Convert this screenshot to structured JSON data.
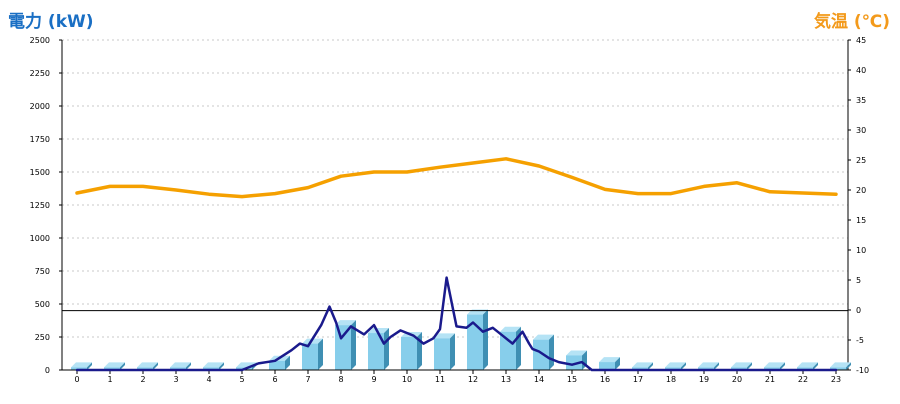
{
  "titles": {
    "left": "電力 (kW)",
    "right": "気温 (℃)"
  },
  "colors": {
    "power_line": "#1a1a8c",
    "temperature_line": "#f5a000",
    "bar_front": "#87ceeb",
    "bar_side": "#3f8fb3",
    "bar_top": "#b5e3f5",
    "left_title": "#1a6fc4",
    "right_title": "#f39a1b",
    "grid": "#c8c8c8"
  },
  "chart_data": {
    "type": "bar",
    "categories": [
      "0",
      "1",
      "2",
      "3",
      "4",
      "5",
      "6",
      "7",
      "8",
      "9",
      "10",
      "11",
      "12",
      "13",
      "14",
      "15",
      "16",
      "17",
      "18",
      "19",
      "20",
      "21",
      "22",
      "23"
    ],
    "y_left_ticks": [
      "0",
      "250",
      "500",
      "750",
      "1000",
      "1250",
      "1500",
      "1750",
      "2000",
      "2250",
      "2500"
    ],
    "y_right_ticks": [
      "-10",
      "-5",
      "0",
      "5",
      "10",
      "15",
      "20",
      "25",
      "30",
      "35",
      "40",
      "45"
    ],
    "ylim_left": [
      0,
      2500
    ],
    "ylim_right": [
      -10,
      45
    ],
    "reference_line_left": 450,
    "grid": true,
    "series": [
      {
        "type": "bar",
        "axis": "left",
        "values": [
          20,
          20,
          20,
          20,
          20,
          20,
          70,
          200,
          340,
          280,
          250,
          240,
          420,
          290,
          230,
          110,
          60,
          20,
          20,
          20,
          20,
          20,
          20,
          20
        ]
      },
      {
        "type": "line",
        "axis": "left",
        "points": [
          [
            0,
            0
          ],
          [
            1,
            0
          ],
          [
            2,
            0
          ],
          [
            3,
            0
          ],
          [
            4,
            0
          ],
          [
            5,
            0
          ],
          [
            5.5,
            50
          ],
          [
            6,
            70
          ],
          [
            6.5,
            150
          ],
          [
            6.75,
            200
          ],
          [
            7,
            180
          ],
          [
            7.4,
            340
          ],
          [
            7.65,
            480
          ],
          [
            7.85,
            360
          ],
          [
            8,
            240
          ],
          [
            8.3,
            330
          ],
          [
            8.7,
            270
          ],
          [
            9,
            340
          ],
          [
            9.3,
            200
          ],
          [
            9.5,
            250
          ],
          [
            9.8,
            300
          ],
          [
            10.2,
            260
          ],
          [
            10.5,
            200
          ],
          [
            10.8,
            240
          ],
          [
            11,
            310
          ],
          [
            11.2,
            700
          ],
          [
            11.5,
            330
          ],
          [
            11.8,
            320
          ],
          [
            12,
            360
          ],
          [
            12.3,
            290
          ],
          [
            12.6,
            320
          ],
          [
            12.9,
            260
          ],
          [
            13.2,
            200
          ],
          [
            13.5,
            290
          ],
          [
            13.7,
            200
          ],
          [
            13.8,
            160
          ],
          [
            14,
            140
          ],
          [
            14.3,
            90
          ],
          [
            14.6,
            60
          ],
          [
            15,
            40
          ],
          [
            15.3,
            60
          ],
          [
            15.6,
            0
          ],
          [
            16,
            0
          ],
          [
            17,
            0
          ],
          [
            18,
            0
          ],
          [
            19,
            0
          ],
          [
            20,
            0
          ],
          [
            21,
            0
          ],
          [
            22,
            0
          ],
          [
            23,
            0
          ]
        ]
      },
      {
        "type": "line",
        "axis": "right",
        "points": [
          [
            0,
            19.5
          ],
          [
            1,
            20.6
          ],
          [
            2,
            20.6
          ],
          [
            3,
            20
          ],
          [
            4,
            19.3
          ],
          [
            5,
            18.9
          ],
          [
            6,
            19.4
          ],
          [
            7,
            20.4
          ],
          [
            8,
            22.3
          ],
          [
            9,
            23
          ],
          [
            10,
            23
          ],
          [
            11,
            23.8
          ],
          [
            12,
            24.5
          ],
          [
            13,
            25.2
          ],
          [
            14,
            24
          ],
          [
            15,
            22.1
          ],
          [
            16,
            20.1
          ],
          [
            17,
            19.4
          ],
          [
            18,
            19.4
          ],
          [
            19,
            20.6
          ],
          [
            20,
            21.2
          ],
          [
            21,
            19.7
          ],
          [
            22,
            19.5
          ],
          [
            23,
            19.3
          ]
        ]
      }
    ]
  }
}
